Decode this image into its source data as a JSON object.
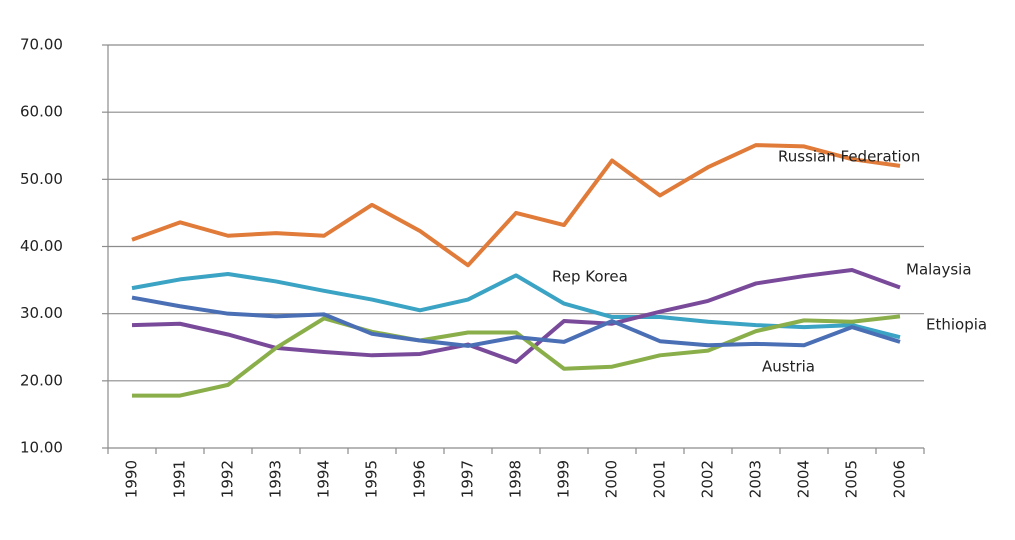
{
  "chart_data": {
    "type": "line",
    "categories": [
      "1990",
      "1991",
      "1992",
      "1993",
      "1994",
      "1995",
      "1996",
      "1997",
      "1998",
      "1999",
      "2000",
      "2001",
      "2002",
      "2003",
      "2004",
      "2005",
      "2006"
    ],
    "ylim": [
      10,
      70
    ],
    "yticks": [
      {
        "value": 10,
        "label": "10.00"
      },
      {
        "value": 20,
        "label": "20.00"
      },
      {
        "value": 30,
        "label": "30.00"
      },
      {
        "value": 40,
        "label": "40.00"
      },
      {
        "value": 50,
        "label": "50.00"
      },
      {
        "value": 60,
        "label": "60.00"
      },
      {
        "value": 70,
        "label": "70.00"
      }
    ],
    "grid": true,
    "series": [
      {
        "name": "Russian Federation",
        "color": "#e07b39",
        "values": [
          41.0,
          43.6,
          41.6,
          42.0,
          41.6,
          46.2,
          42.3,
          37.2,
          45.0,
          43.2,
          52.8,
          47.6,
          51.8,
          55.1,
          54.9,
          53.0,
          52.0
        ]
      },
      {
        "name": "Rep Korea",
        "color": "#3ba3c4",
        "values": [
          33.8,
          35.1,
          35.9,
          34.8,
          33.4,
          32.1,
          30.5,
          32.1,
          35.7,
          31.5,
          29.5,
          29.5,
          28.8,
          28.3,
          28.0,
          28.3,
          26.5
        ]
      },
      {
        "name": "Malaysia",
        "color": "#7a4a9a",
        "values": [
          28.3,
          28.5,
          26.9,
          24.9,
          24.3,
          23.8,
          24.0,
          25.4,
          22.8,
          28.9,
          28.5,
          30.3,
          31.9,
          34.5,
          35.6,
          36.5,
          33.9
        ]
      },
      {
        "name": "Ethiopia",
        "color": "#8aaf4a",
        "values": [
          17.8,
          17.8,
          19.4,
          24.9,
          29.3,
          27.3,
          26.0,
          27.2,
          27.2,
          21.8,
          22.1,
          23.8,
          24.5,
          27.4,
          29.0,
          28.8,
          29.6
        ]
      },
      {
        "name": "Austria",
        "color": "#4a6fb5",
        "values": [
          32.4,
          31.1,
          30.0,
          29.6,
          29.9,
          27.0,
          26.0,
          25.2,
          26.5,
          25.8,
          28.9,
          25.9,
          25.3,
          25.5,
          25.3,
          28.0,
          25.8
        ]
      }
    ]
  }
}
